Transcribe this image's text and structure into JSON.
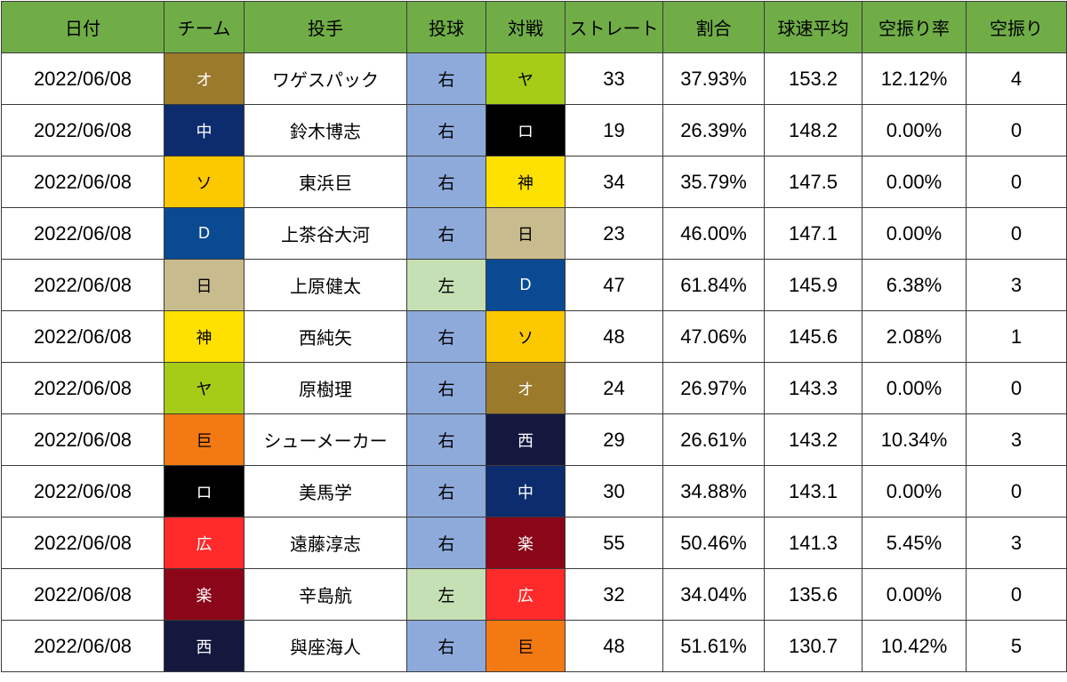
{
  "headers": {
    "date": "日付",
    "team": "チーム",
    "pitcher": "投手",
    "hand": "投球",
    "opponent": "対戦",
    "straight": "ストレート",
    "ratio": "割合",
    "avg_speed": "球速平均",
    "whiff_rate": "空振り率",
    "whiffs": "空振り"
  },
  "colors": {
    "header_bg": "#70ad47",
    "hand_right": "#8eaadb",
    "hand_left": "#c5e0b4",
    "teams": {
      "オ": {
        "bg": "#9c7a2c",
        "fg": "#ffffff"
      },
      "中": {
        "bg": "#0c2c6e",
        "fg": "#ffffff"
      },
      "ソ": {
        "bg": "#fcc800",
        "fg": "#000000"
      },
      "D": {
        "bg": "#0a4a92",
        "fg": "#ffffff"
      },
      "日": {
        "bg": "#c8bb8e",
        "fg": "#000000"
      },
      "神": {
        "bg": "#ffe100",
        "fg": "#000000"
      },
      "ヤ": {
        "bg": "#a6cc18",
        "fg": "#000000"
      },
      "巨": {
        "bg": "#f37a12",
        "fg": "#000000"
      },
      "ロ": {
        "bg": "#000000",
        "fg": "#ffffff"
      },
      "広": {
        "bg": "#ff2a2a",
        "fg": "#ffffff"
      },
      "楽": {
        "bg": "#8a0618",
        "fg": "#ffffff"
      },
      "西": {
        "bg": "#15183e",
        "fg": "#ffffff"
      }
    }
  },
  "rows": [
    {
      "date": "2022/06/08",
      "team": "オ",
      "pitcher": "ワゲスパック",
      "hand": "右",
      "opponent": "ヤ",
      "straight": "33",
      "ratio": "37.93%",
      "avg_speed": "153.2",
      "whiff_rate": "12.12%",
      "whiffs": "4"
    },
    {
      "date": "2022/06/08",
      "team": "中",
      "pitcher": "鈴木博志",
      "hand": "右",
      "opponent": "ロ",
      "straight": "19",
      "ratio": "26.39%",
      "avg_speed": "148.2",
      "whiff_rate": "0.00%",
      "whiffs": "0"
    },
    {
      "date": "2022/06/08",
      "team": "ソ",
      "pitcher": "東浜巨",
      "hand": "右",
      "opponent": "神",
      "straight": "34",
      "ratio": "35.79%",
      "avg_speed": "147.5",
      "whiff_rate": "0.00%",
      "whiffs": "0"
    },
    {
      "date": "2022/06/08",
      "team": "D",
      "pitcher": "上茶谷大河",
      "hand": "右",
      "opponent": "日",
      "straight": "23",
      "ratio": "46.00%",
      "avg_speed": "147.1",
      "whiff_rate": "0.00%",
      "whiffs": "0"
    },
    {
      "date": "2022/06/08",
      "team": "日",
      "pitcher": "上原健太",
      "hand": "左",
      "opponent": "D",
      "straight": "47",
      "ratio": "61.84%",
      "avg_speed": "145.9",
      "whiff_rate": "6.38%",
      "whiffs": "3"
    },
    {
      "date": "2022/06/08",
      "team": "神",
      "pitcher": "西純矢",
      "hand": "右",
      "opponent": "ソ",
      "straight": "48",
      "ratio": "47.06%",
      "avg_speed": "145.6",
      "whiff_rate": "2.08%",
      "whiffs": "1"
    },
    {
      "date": "2022/06/08",
      "team": "ヤ",
      "pitcher": "原樹理",
      "hand": "右",
      "opponent": "オ",
      "straight": "24",
      "ratio": "26.97%",
      "avg_speed": "143.3",
      "whiff_rate": "0.00%",
      "whiffs": "0"
    },
    {
      "date": "2022/06/08",
      "team": "巨",
      "pitcher": "シューメーカー",
      "hand": "右",
      "opponent": "西",
      "straight": "29",
      "ratio": "26.61%",
      "avg_speed": "143.2",
      "whiff_rate": "10.34%",
      "whiffs": "3"
    },
    {
      "date": "2022/06/08",
      "team": "ロ",
      "pitcher": "美馬学",
      "hand": "右",
      "opponent": "中",
      "straight": "30",
      "ratio": "34.88%",
      "avg_speed": "143.1",
      "whiff_rate": "0.00%",
      "whiffs": "0"
    },
    {
      "date": "2022/06/08",
      "team": "広",
      "pitcher": "遠藤淳志",
      "hand": "右",
      "opponent": "楽",
      "straight": "55",
      "ratio": "50.46%",
      "avg_speed": "141.3",
      "whiff_rate": "5.45%",
      "whiffs": "3"
    },
    {
      "date": "2022/06/08",
      "team": "楽",
      "pitcher": "辛島航",
      "hand": "左",
      "opponent": "広",
      "straight": "32",
      "ratio": "34.04%",
      "avg_speed": "135.6",
      "whiff_rate": "0.00%",
      "whiffs": "0"
    },
    {
      "date": "2022/06/08",
      "team": "西",
      "pitcher": "與座海人",
      "hand": "右",
      "opponent": "巨",
      "straight": "48",
      "ratio": "51.61%",
      "avg_speed": "130.7",
      "whiff_rate": "10.42%",
      "whiffs": "5"
    }
  ]
}
